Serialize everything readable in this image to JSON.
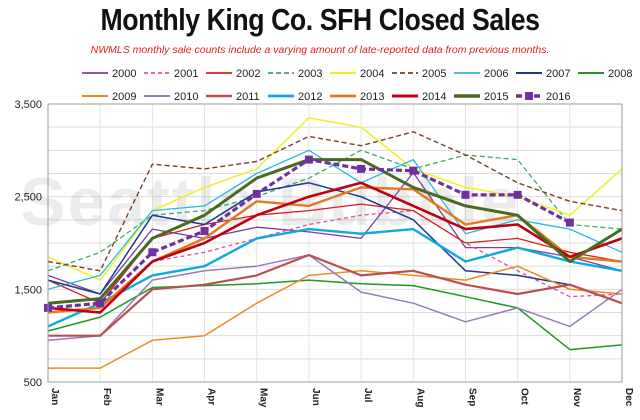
{
  "chart_data": {
    "type": "line",
    "title": "Monthly King Co. SFH Closed Sales",
    "subtitle": "NWMLS monthly sale counts include a varying amount of late-reported data from previous months.",
    "watermark": "Seattle Bubble",
    "categories": [
      "Jan",
      "Feb",
      "Mar",
      "Apr",
      "May",
      "Jun",
      "Jul",
      "Aug",
      "Sep",
      "Oct",
      "Nov",
      "Dec"
    ],
    "ylim": [
      500,
      3500
    ],
    "yticks": [
      "3,500",
      "2,500",
      "1,500",
      "500"
    ],
    "ytick_values": [
      3500,
      2500,
      1500,
      500
    ],
    "grid": true,
    "series": [
      {
        "name": "2000",
        "color": "#7a3fa0",
        "dash": "",
        "width": 1.3,
        "values": [
          1650,
          1450,
          2150,
          2050,
          2170,
          2120,
          2050,
          2760,
          1950,
          1950,
          1850,
          1700
        ]
      },
      {
        "name": "2001",
        "color": "#e24fa0",
        "dash": "4,3",
        "width": 1.3,
        "values": [
          1300,
          1250,
          1800,
          1900,
          2050,
          2200,
          2300,
          2350,
          2000,
          1700,
          1420,
          1450
        ]
      },
      {
        "name": "2002",
        "color": "#d42020",
        "dash": "",
        "width": 1.3,
        "values": [
          1600,
          1350,
          2050,
          2200,
          2300,
          2350,
          2420,
          2350,
          2000,
          2050,
          1900,
          1800
        ]
      },
      {
        "name": "2003",
        "color": "#3aaa6a",
        "dash": "5,3",
        "width": 1.3,
        "values": [
          1700,
          1900,
          2300,
          2350,
          2500,
          2700,
          3000,
          2800,
          2950,
          2900,
          2200,
          2150
        ]
      },
      {
        "name": "2004",
        "color": "#f0f020",
        "dash": "",
        "width": 1.5,
        "values": [
          1850,
          1600,
          2350,
          2600,
          2800,
          3350,
          3250,
          2800,
          2600,
          2500,
          2300,
          2800
        ]
      },
      {
        "name": "2005",
        "color": "#7a4020",
        "dash": "5,3",
        "width": 1.4,
        "values": [
          1800,
          1700,
          2850,
          2800,
          2880,
          3150,
          3050,
          3200,
          2950,
          2650,
          2450,
          2350
        ]
      },
      {
        "name": "2006",
        "color": "#29b8e0",
        "dash": "",
        "width": 1.3,
        "values": [
          1500,
          1650,
          2350,
          2400,
          2750,
          3000,
          2650,
          2900,
          2100,
          2250,
          2150,
          1900
        ]
      },
      {
        "name": "2007",
        "color": "#1e3a8a",
        "dash": "",
        "width": 1.5,
        "values": [
          1600,
          1450,
          2300,
          2200,
          2550,
          2650,
          2500,
          2250,
          1700,
          1650,
          1550,
          1350
        ]
      },
      {
        "name": "2008",
        "color": "#1a9a20",
        "dash": "",
        "width": 1.5,
        "values": [
          1050,
          1200,
          1520,
          1540,
          1560,
          1600,
          1560,
          1540,
          1420,
          1300,
          850,
          900
        ]
      },
      {
        "name": "2009",
        "color": "#f08a20",
        "dash": "",
        "width": 1.5,
        "values": [
          650,
          650,
          950,
          1000,
          1350,
          1650,
          1700,
          1650,
          1600,
          1750,
          1500,
          1450
        ]
      },
      {
        "name": "2010",
        "color": "#9a7ab8",
        "dash": "",
        "width": 1.5,
        "values": [
          950,
          1000,
          1600,
          1700,
          1750,
          1870,
          1470,
          1350,
          1150,
          1300,
          1100,
          1500
        ]
      },
      {
        "name": "2011",
        "color": "#b85050",
        "dash": "",
        "width": 2.2,
        "values": [
          1000,
          1000,
          1500,
          1550,
          1650,
          1870,
          1650,
          1700,
          1550,
          1450,
          1550,
          1350
        ]
      },
      {
        "name": "2012",
        "color": "#10a8e0",
        "dash": "",
        "width": 2.4,
        "values": [
          1100,
          1350,
          1650,
          1750,
          2050,
          2150,
          2100,
          2150,
          1800,
          1950,
          1800,
          1700
        ]
      },
      {
        "name": "2013",
        "color": "#e07a20",
        "dash": "",
        "width": 2.4,
        "values": [
          1250,
          1300,
          1800,
          2050,
          2450,
          2400,
          2600,
          2580,
          2200,
          2300,
          1850,
          1800
        ]
      },
      {
        "name": "2014",
        "color": "#c00010",
        "dash": "",
        "width": 2.6,
        "values": [
          1300,
          1250,
          1800,
          2000,
          2300,
          2500,
          2650,
          2400,
          2150,
          2200,
          1850,
          2050
        ]
      },
      {
        "name": "2015",
        "color": "#4a6a20",
        "dash": "",
        "width": 3.0,
        "values": [
          1350,
          1400,
          2050,
          2300,
          2700,
          2900,
          2900,
          2600,
          2400,
          2300,
          1800,
          2150
        ]
      },
      {
        "name": "2016",
        "color": "#7030a0",
        "dash": "6,3",
        "width": 3.2,
        "values": [
          1300,
          1350,
          1900,
          2130,
          2530,
          2900,
          2800,
          2780,
          2520,
          2520,
          2220,
          null
        ]
      }
    ],
    "legend_placement": "top"
  }
}
